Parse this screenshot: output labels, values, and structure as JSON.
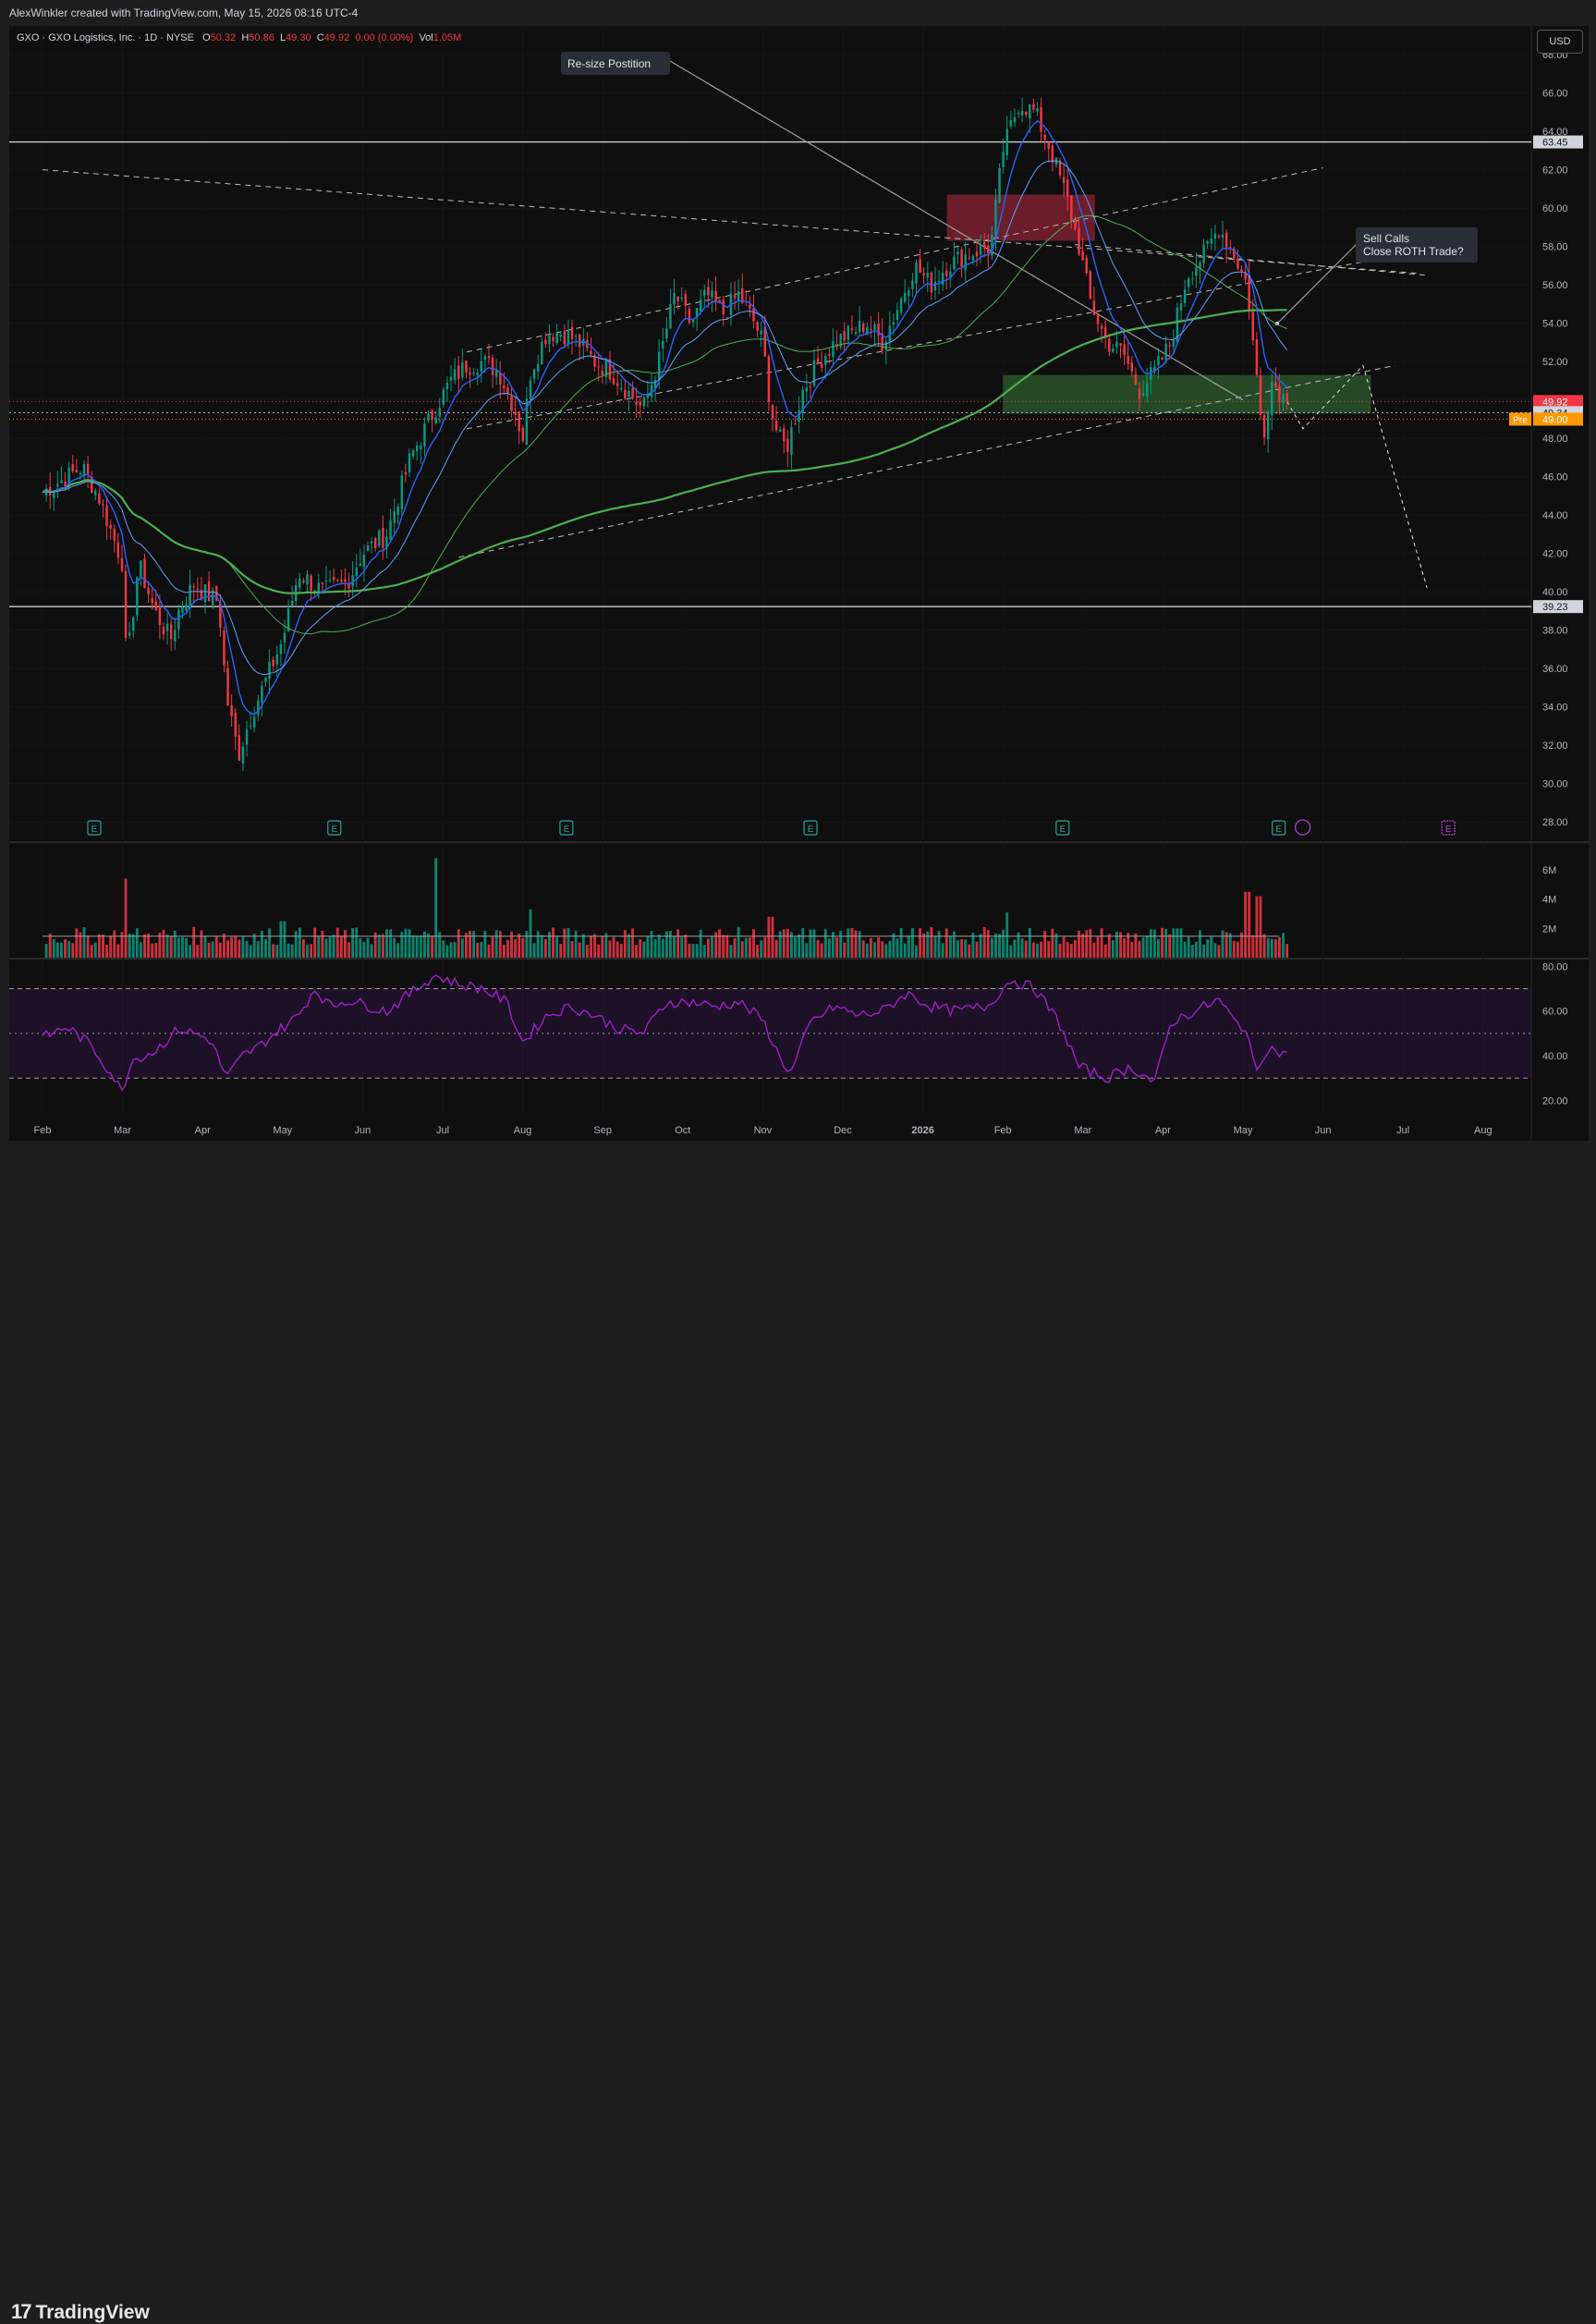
{
  "header": {
    "credit": "AlexWinkler created with TradingView.com, May 15, 2026 08:16 UTC-4",
    "currency": "USD"
  },
  "legend": {
    "symbol": "GXO · GXO Logistics, Inc. · 1D · NYSE",
    "o_label": "O",
    "o_value": "50.32",
    "h_label": "H",
    "h_value": "50.86",
    "l_label": "L",
    "l_value": "49.30",
    "c_label": "C",
    "c_value": "49.92",
    "change": "0.00 (0.00%)",
    "vol_label": "Vol",
    "vol_value": "1.05M"
  },
  "footer": {
    "brand": "TradingView",
    "brand_mark": "17"
  },
  "colors": {
    "background": "#0f0f0f",
    "up": "#089981",
    "down": "#f23645",
    "ema_fast": "#2962ff",
    "sma_slow": "#4caf50",
    "rsi": "#a020c8",
    "supply_zone": "#8b2434",
    "demand_zone": "#2e5e2e",
    "premarket": "#ff9800"
  },
  "chart_data": [
    {
      "type": "candlestick",
      "title": "",
      "x_labels": [
        "Feb",
        "Mar",
        "Apr",
        "May",
        "Jun",
        "Jul",
        "Aug",
        "Sep",
        "Oct",
        "Nov",
        "Dec",
        "2026",
        "Feb",
        "Mar",
        "Apr",
        "May",
        "Jun",
        "Jul",
        "Aug"
      ],
      "y_ticks": [
        "28.00",
        "30.00",
        "32.00",
        "34.00",
        "36.00",
        "38.00",
        "40.00",
        "42.00",
        "44.00",
        "46.00",
        "48.00",
        "50.00",
        "52.00",
        "54.00",
        "56.00",
        "58.00",
        "60.00",
        "62.00",
        "64.00",
        "66.00",
        "68.00"
      ],
      "ylim": [
        27,
        69.5
      ],
      "price_path": [
        [
          0,
          45.2
        ],
        [
          0.5,
          46.5
        ],
        [
          0.7,
          45
        ],
        [
          1,
          41.5
        ],
        [
          1.05,
          36
        ],
        [
          1.2,
          41.5
        ],
        [
          1.4,
          39
        ],
        [
          1.6,
          37.5
        ],
        [
          1.7,
          39
        ],
        [
          1.9,
          40.5
        ],
        [
          2.0,
          40
        ],
        [
          2.2,
          39.5
        ],
        [
          2.3,
          34.5
        ],
        [
          2.45,
          31.5
        ],
        [
          2.6,
          33.5
        ],
        [
          2.8,
          35.5
        ],
        [
          3.0,
          37.5
        ],
        [
          3.2,
          41
        ],
        [
          3.5,
          40
        ],
        [
          3.8,
          40.5
        ],
        [
          4.0,
          42
        ],
        [
          4.3,
          43
        ],
        [
          4.6,
          47
        ],
        [
          4.9,
          49.5
        ],
        [
          5.1,
          51
        ],
        [
          5.3,
          51.8
        ],
        [
          5.5,
          52
        ],
        [
          5.7,
          51.5
        ],
        [
          5.9,
          49.5
        ],
        [
          6.0,
          48
        ],
        [
          6.1,
          51.5
        ],
        [
          6.3,
          53.5
        ],
        [
          6.5,
          53.5
        ],
        [
          6.7,
          53
        ],
        [
          6.9,
          52
        ],
        [
          7.1,
          51.5
        ],
        [
          7.3,
          50.5
        ],
        [
          7.5,
          49.5
        ],
        [
          7.7,
          52
        ],
        [
          7.9,
          55.5
        ],
        [
          8.1,
          54
        ],
        [
          8.3,
          55.5
        ],
        [
          8.5,
          54.5
        ],
        [
          8.7,
          55.5
        ],
        [
          8.9,
          54
        ],
        [
          9.0,
          53
        ],
        [
          9.1,
          49.5
        ],
        [
          9.2,
          48
        ],
        [
          9.3,
          47.5
        ],
        [
          9.5,
          50.5
        ],
        [
          9.7,
          52
        ],
        [
          9.9,
          53
        ],
        [
          10.1,
          53.5
        ],
        [
          10.3,
          54
        ],
        [
          10.5,
          53
        ],
        [
          10.7,
          55
        ],
        [
          10.9,
          57
        ],
        [
          11.1,
          56
        ],
        [
          11.3,
          57
        ],
        [
          11.5,
          57.5
        ],
        [
          11.7,
          57.8
        ],
        [
          11.85,
          58
        ],
        [
          12.0,
          63
        ],
        [
          12.2,
          65.5
        ],
        [
          12.4,
          65
        ],
        [
          12.6,
          63
        ],
        [
          12.8,
          60.5
        ],
        [
          12.95,
          58
        ],
        [
          13.1,
          55
        ],
        [
          13.3,
          53
        ],
        [
          13.5,
          52.5
        ],
        [
          13.7,
          50.5
        ],
        [
          13.9,
          51.5
        ],
        [
          14.1,
          53
        ],
        [
          14.3,
          56.5
        ],
        [
          14.5,
          57.5
        ],
        [
          14.7,
          59
        ],
        [
          14.9,
          57.5
        ],
        [
          15.05,
          56
        ],
        [
          15.15,
          52
        ],
        [
          15.25,
          48
        ],
        [
          15.35,
          51
        ],
        [
          15.45,
          50.5
        ],
        [
          15.55,
          49.92
        ]
      ],
      "price_lines": [
        {
          "label": "63.45",
          "value": 63.45
        },
        {
          "label": "39.23",
          "value": 39.23
        },
        {
          "label": "49.92",
          "value": 49.92,
          "style": "last"
        },
        {
          "label": "49.34",
          "value": 49.34
        },
        {
          "label": "Pre",
          "value": 49.0,
          "value_label": "49.00",
          "style": "premarket"
        }
      ],
      "zones": [
        {
          "kind": "supply",
          "x": [
            11.3,
            13.15
          ],
          "y": [
            58.3,
            60.7
          ]
        },
        {
          "kind": "demand",
          "x": [
            12.0,
            16.6
          ],
          "y": [
            49.3,
            51.3
          ]
        }
      ],
      "annotations": [
        {
          "text": "Re-size Postition"
        },
        {
          "text": "Sell Calls"
        },
        {
          "text": "Close ROTH Trade?"
        }
      ],
      "earnings_marker": "E"
    },
    {
      "type": "bar",
      "title": "",
      "y_ticks": [
        "2M",
        "4M",
        "6M"
      ],
      "ylim": [
        0,
        7.2
      ],
      "units": "M",
      "volume_spikes": [
        [
          1.05,
          5.4
        ],
        [
          3.0,
          2.5
        ],
        [
          4.9,
          6.8
        ],
        [
          6.1,
          3.3
        ],
        [
          9.1,
          2.8
        ],
        [
          12.05,
          3.1
        ],
        [
          14.2,
          2.0
        ],
        [
          15.05,
          4.5
        ],
        [
          15.2,
          4.2
        ]
      ],
      "base_volume": 1.4
    },
    {
      "type": "line",
      "title": "",
      "y_ticks": [
        "20.00",
        "40.00",
        "60.00",
        "80.00"
      ],
      "ylim": [
        14,
        83
      ],
      "bands": [
        30,
        50,
        70
      ],
      "rsi_path": [
        [
          0,
          48
        ],
        [
          0.3,
          53
        ],
        [
          0.6,
          45
        ],
        [
          0.9,
          30
        ],
        [
          1.0,
          23
        ],
        [
          1.1,
          38
        ],
        [
          1.4,
          42
        ],
        [
          1.7,
          52
        ],
        [
          1.9,
          50
        ],
        [
          2.1,
          47
        ],
        [
          2.3,
          30
        ],
        [
          2.5,
          40
        ],
        [
          2.7,
          44
        ],
        [
          2.9,
          50
        ],
        [
          3.2,
          58
        ],
        [
          3.4,
          70
        ],
        [
          3.6,
          62
        ],
        [
          3.8,
          65
        ],
        [
          4.0,
          63
        ],
        [
          4.3,
          60
        ],
        [
          4.6,
          68
        ],
        [
          4.9,
          76
        ],
        [
          5.2,
          72
        ],
        [
          5.5,
          70
        ],
        [
          5.8,
          64
        ],
        [
          6.0,
          46
        ],
        [
          6.3,
          58
        ],
        [
          6.6,
          62
        ],
        [
          6.9,
          58
        ],
        [
          7.2,
          52
        ],
        [
          7.5,
          50
        ],
        [
          7.8,
          64
        ],
        [
          8.1,
          64
        ],
        [
          8.4,
          62
        ],
        [
          8.7,
          64
        ],
        [
          9.0,
          56
        ],
        [
          9.2,
          40
        ],
        [
          9.35,
          32
        ],
        [
          9.6,
          55
        ],
        [
          9.9,
          62
        ],
        [
          10.2,
          58
        ],
        [
          10.5,
          60
        ],
        [
          10.8,
          68
        ],
        [
          11.1,
          62
        ],
        [
          11.4,
          60
        ],
        [
          11.8,
          62
        ],
        [
          12.1,
          74
        ],
        [
          12.4,
          70
        ],
        [
          12.7,
          55
        ],
        [
          12.95,
          35
        ],
        [
          13.3,
          30
        ],
        [
          13.6,
          35
        ],
        [
          13.9,
          28
        ],
        [
          14.1,
          55
        ],
        [
          14.4,
          60
        ],
        [
          14.7,
          65
        ],
        [
          14.9,
          55
        ],
        [
          15.05,
          52
        ],
        [
          15.15,
          32
        ],
        [
          15.3,
          44
        ],
        [
          15.55,
          40
        ]
      ]
    }
  ]
}
